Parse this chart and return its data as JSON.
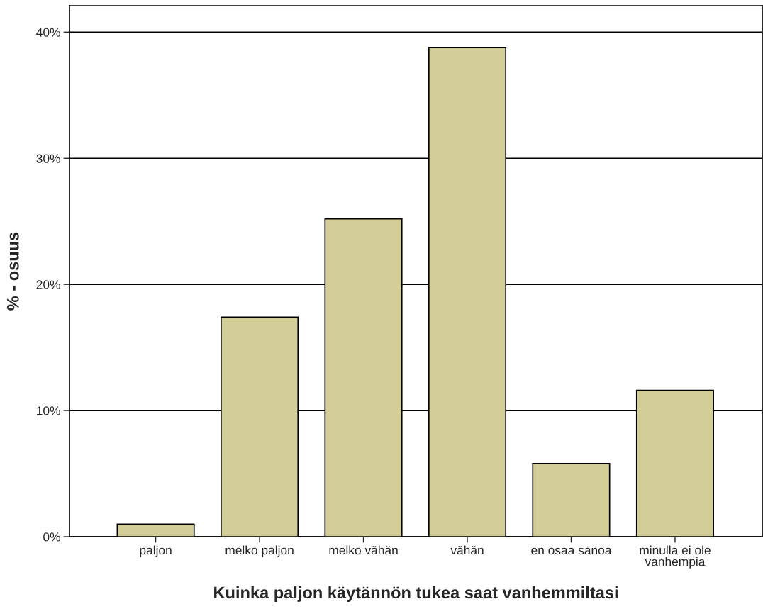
{
  "chart_data": {
    "type": "bar",
    "xlabel": "Kuinka paljon käytännön tukea saat vanhemmiltasi",
    "ylabel": "% - osuus",
    "categories": [
      "paljon",
      "melko paljon",
      "melko vähän",
      "vähän",
      "en osaa sanoa",
      "minulla ei ole\nvanhempia"
    ],
    "values": [
      1.0,
      17.4,
      25.2,
      38.8,
      5.8,
      11.6
    ],
    "color": "#d3ce98",
    "ylim": [
      0,
      42.1
    ],
    "yticks": [
      {
        "value": 0,
        "label": "0%"
      },
      {
        "value": 10,
        "label": "10%"
      },
      {
        "value": 20,
        "label": "20%"
      },
      {
        "value": 30,
        "label": "30%"
      },
      {
        "value": 40,
        "label": "40%"
      }
    ],
    "grid": "y",
    "legend": false
  }
}
